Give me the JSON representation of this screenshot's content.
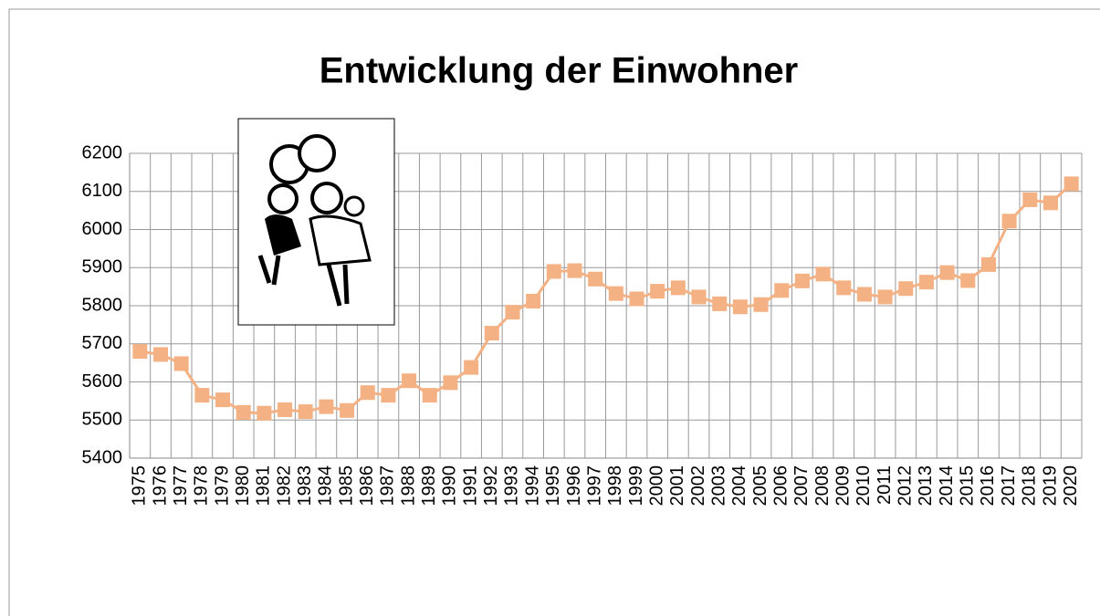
{
  "chart_data": {
    "type": "line",
    "title": "Entwicklung der Einwohner",
    "categories": [
      "1975",
      "1976",
      "1977",
      "1978",
      "1979",
      "1980",
      "1981",
      "1982",
      "1983",
      "1984",
      "1985",
      "1986",
      "1987",
      "1988",
      "1989",
      "1990",
      "1991",
      "1992",
      "1993",
      "1994",
      "1995",
      "1996",
      "1997",
      "1998",
      "1999",
      "2000",
      "2001",
      "2002",
      "2003",
      "2004",
      "2005",
      "2006",
      "2007",
      "2008",
      "2009",
      "2010",
      "2011",
      "2012",
      "2013",
      "2014",
      "2015",
      "2016",
      "2017",
      "2018",
      "2019",
      "2020"
    ],
    "values": [
      5680,
      5672,
      5648,
      5565,
      5553,
      5520,
      5518,
      5527,
      5522,
      5535,
      5525,
      5572,
      5565,
      5603,
      5565,
      5598,
      5638,
      5728,
      5783,
      5812,
      5890,
      5892,
      5870,
      5832,
      5818,
      5838,
      5847,
      5823,
      5805,
      5797,
      5803,
      5840,
      5865,
      5883,
      5847,
      5830,
      5823,
      5845,
      5862,
      5887,
      5866,
      5908,
      6022,
      6078,
      6070,
      6120
    ],
    "color": "#f4b183",
    "ylim": [
      5400,
      6200
    ],
    "yticks": [
      5400,
      5500,
      5600,
      5700,
      5800,
      5900,
      6000,
      6100,
      6200
    ],
    "grid": true
  }
}
